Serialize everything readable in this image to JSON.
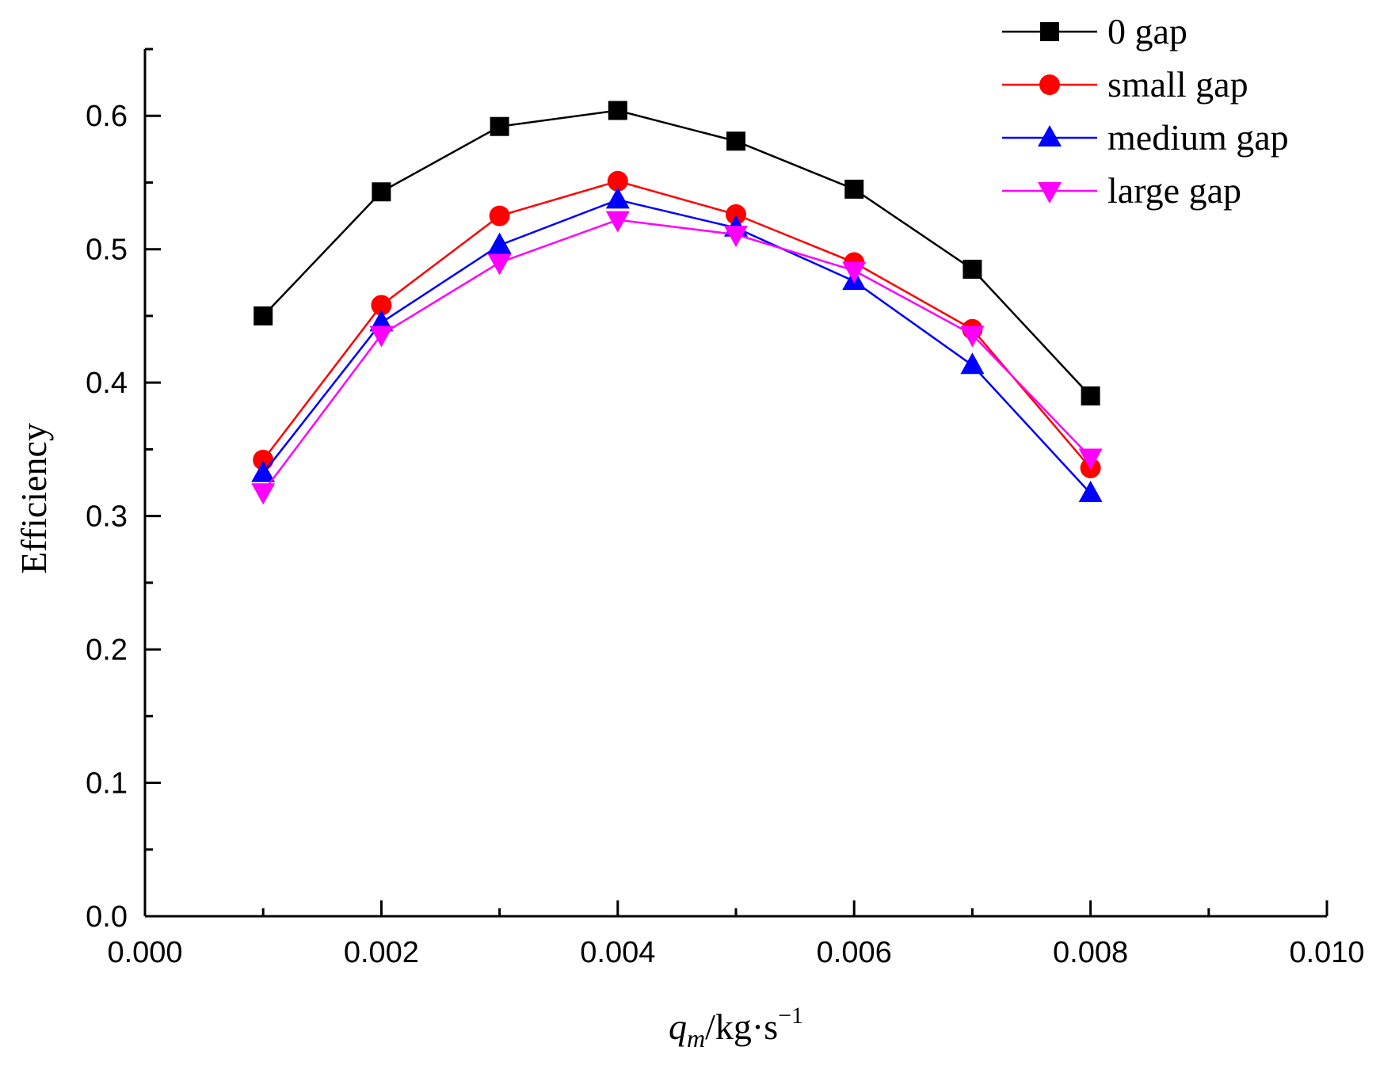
{
  "chart_data": {
    "type": "line",
    "title": "",
    "xlabel": {
      "main": "q",
      "sub": "m",
      "unit": "/kg·s",
      "sup": "−1"
    },
    "ylabel": "Efficiency",
    "xlim": [
      0.0,
      0.01
    ],
    "ylim": [
      0.0,
      0.65
    ],
    "x_ticks": [
      0.0,
      0.002,
      0.004,
      0.006,
      0.008,
      0.01
    ],
    "x_tick_labels": [
      "0.000",
      "0.002",
      "0.004",
      "0.006",
      "0.008",
      "0.010"
    ],
    "y_ticks": [
      0.0,
      0.1,
      0.2,
      0.3,
      0.4,
      0.5,
      0.6
    ],
    "y_tick_labels": [
      "0.0",
      "0.1",
      "0.2",
      "0.3",
      "0.4",
      "0.5",
      "0.6"
    ],
    "grid": false,
    "legend_position": "top-right",
    "x": [
      0.001,
      0.002,
      0.003,
      0.004,
      0.005,
      0.006,
      0.007,
      0.008
    ],
    "series": [
      {
        "name": "0 gap",
        "color": "#000000",
        "marker": "square",
        "values": [
          0.45,
          0.543,
          0.592,
          0.604,
          0.581,
          0.545,
          0.485,
          0.39
        ]
      },
      {
        "name": "small gap",
        "color": "#ff0000",
        "marker": "circle",
        "values": [
          0.342,
          0.458,
          0.525,
          0.551,
          0.526,
          0.49,
          0.44,
          0.336
        ]
      },
      {
        "name": "medium gap",
        "color": "#0000ff",
        "marker": "triangle-up",
        "values": [
          0.332,
          0.445,
          0.503,
          0.537,
          0.516,
          0.476,
          0.413,
          0.317
        ]
      },
      {
        "name": "large gap",
        "color": "#ff00ff",
        "marker": "triangle-down",
        "values": [
          0.318,
          0.436,
          0.49,
          0.522,
          0.511,
          0.484,
          0.436,
          0.344
        ]
      }
    ]
  }
}
